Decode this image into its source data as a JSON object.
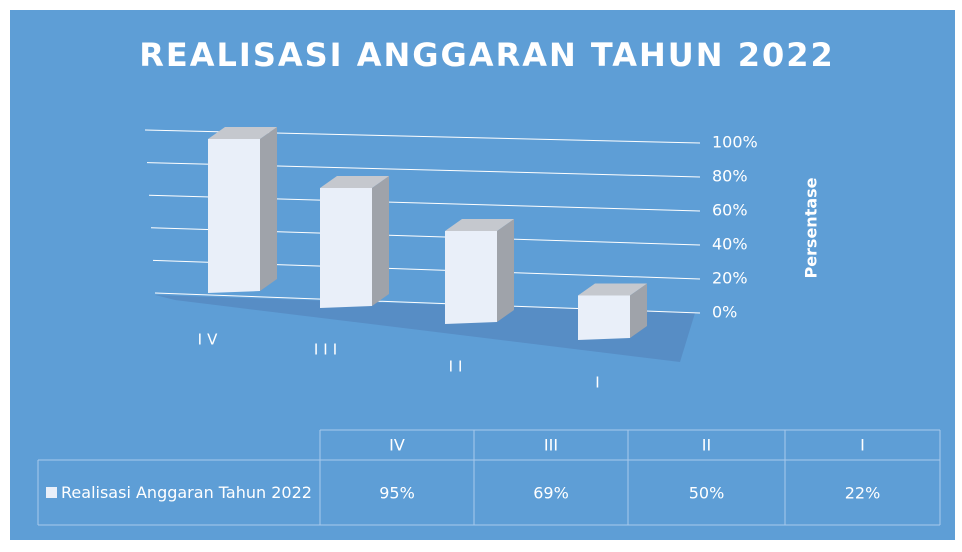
{
  "chart_data": {
    "type": "bar3d",
    "title": "REALISASI ANGGARAN TAHUN 2022",
    "y_label": "Persentase",
    "categories": [
      "IV",
      "III",
      "II",
      "I"
    ],
    "series": [
      {
        "name": "Realisasi Anggaran Tahun 2022",
        "color": "#e9eff9",
        "values": [
          95,
          69,
          50,
          22
        ],
        "value_labels": [
          "95%",
          "69%",
          "50%",
          "22%"
        ]
      }
    ],
    "ylim": [
      0,
      100
    ],
    "yticks": [
      {
        "value": 0,
        "label": "0%"
      },
      {
        "value": 20,
        "label": "20%"
      },
      {
        "value": 40,
        "label": "40%"
      },
      {
        "value": 60,
        "label": "60%"
      },
      {
        "value": 80,
        "label": "80%"
      },
      {
        "value": 100,
        "label": "100%"
      }
    ],
    "grid": true,
    "data_table": true
  }
}
